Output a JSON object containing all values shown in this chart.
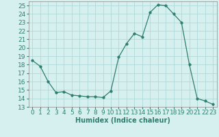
{
  "hours": [
    0,
    1,
    2,
    3,
    4,
    5,
    6,
    7,
    8,
    9,
    10,
    11,
    12,
    13,
    14,
    15,
    16,
    17,
    18,
    19,
    20,
    21,
    22,
    23
  ],
  "values": [
    18.5,
    17.8,
    16.0,
    14.7,
    14.8,
    14.4,
    14.3,
    14.2,
    14.2,
    14.1,
    14.9,
    18.9,
    20.5,
    21.7,
    21.3,
    24.2,
    25.1,
    25.0,
    24.0,
    23.0,
    18.0,
    14.0,
    13.7,
    13.3
  ],
  "line_color": "#2e7d6e",
  "marker": "o",
  "marker_size": 2.5,
  "bg_color": "#d6f0f0",
  "grid_color": "#b0d8d8",
  "xlabel": "Humidex (Indice chaleur)",
  "ylim": [
    13,
    25.5
  ],
  "yticks": [
    13,
    14,
    15,
    16,
    17,
    18,
    19,
    20,
    21,
    22,
    23,
    24,
    25
  ],
  "xlim": [
    -0.5,
    23.5
  ],
  "xticks": [
    0,
    1,
    2,
    3,
    4,
    5,
    6,
    7,
    8,
    9,
    10,
    11,
    12,
    13,
    14,
    15,
    16,
    17,
    18,
    19,
    20,
    21,
    22,
    23
  ],
  "xlabel_fontsize": 7,
  "tick_fontsize": 6.5
}
